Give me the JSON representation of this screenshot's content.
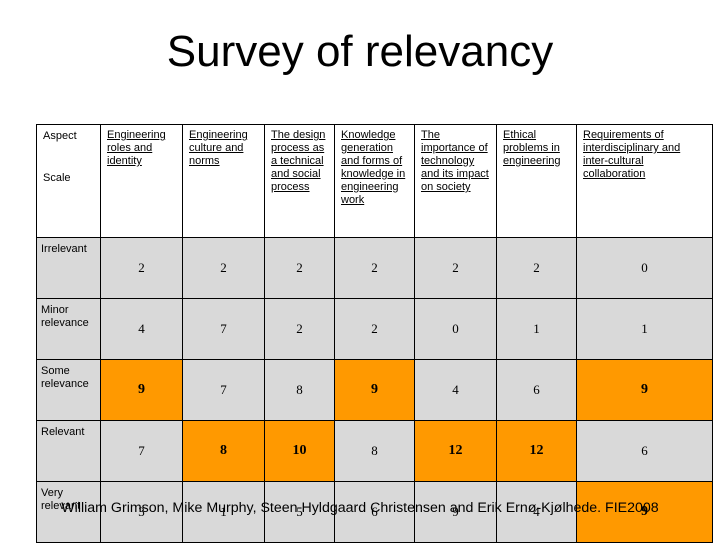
{
  "title": "Survey of relevancy",
  "table": {
    "corner": {
      "aspect": "Aspect",
      "scale": "Scale"
    },
    "columns": [
      "Engineering roles and identity",
      "Engineering culture and norms",
      "The design process as a technical and social process",
      "Knowledge generation and forms of knowledge in engineering work",
      "The importance of technology and its impact on society",
      "Ethical problems in engineering",
      "Requirements of interdisciplinary and inter-cultural collaboration"
    ],
    "rows": [
      {
        "label": "Irrelevant",
        "values": [
          "2",
          "2",
          "2",
          "2",
          "2",
          "2",
          "0"
        ]
      },
      {
        "label": "Minor relevance",
        "values": [
          "4",
          "7",
          "2",
          "2",
          "0",
          "1",
          "1"
        ]
      },
      {
        "label": "Some relevance",
        "values": [
          "9",
          "7",
          "8",
          "9",
          "4",
          "6",
          "9"
        ]
      },
      {
        "label": "Relevant",
        "values": [
          "7",
          "8",
          "10",
          "8",
          "12",
          "12",
          "6"
        ]
      },
      {
        "label": "Very relevant",
        "values": [
          "3",
          "1",
          "5",
          "6",
          "9",
          "4",
          "9"
        ]
      }
    ],
    "highlight_color": "#ff9900",
    "cell_color": "#d9d9d9"
  },
  "footer": "William Grimson, Mike Murphy, Steen Hyldgaard Christensen and Erik Ernø-Kjølhede. FIE2008"
}
